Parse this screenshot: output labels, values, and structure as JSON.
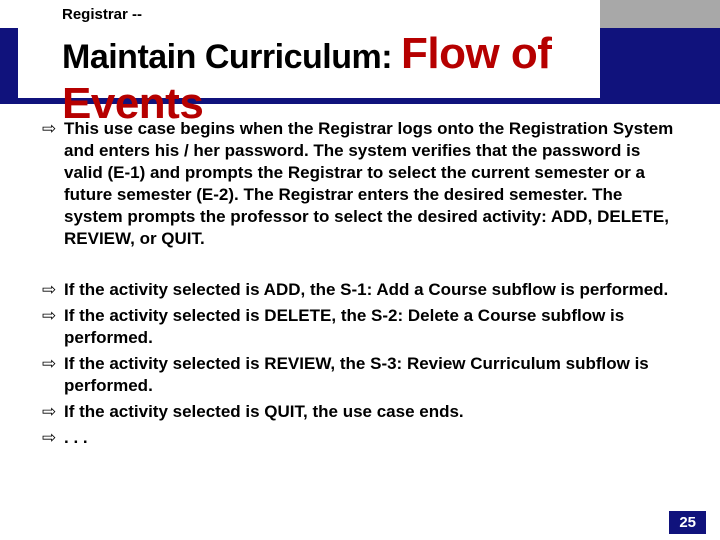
{
  "header": {
    "small_label": "Registrar --",
    "title_part1": "Maintain Curriculum: ",
    "title_part2": "Flow of Events"
  },
  "colors": {
    "blue_bar": "#10127c",
    "grey_box": "#a8a8a8",
    "title_emphasis": "#b60000",
    "page_number_bg": "#10127c",
    "page_number_fg": "#ffffff",
    "body_text": "#000000"
  },
  "bullets_group1": [
    "This use case begins when the Registrar logs onto the Registration System and enters his / her password.  The system verifies that the password is valid (E-1) and prompts the Registrar to select the current semester or a future semester (E-2).  The Registrar enters the desired semester.  The system prompts the professor to select the desired activity:  ADD, DELETE, REVIEW, or QUIT."
  ],
  "bullets_group2": [
    "If the activity selected is ADD, the S-1:  Add a Course subflow is performed.",
    "If the activity selected is DELETE, the S-2:  Delete a Course subflow is performed.",
    "If the activity selected is REVIEW, the S-3:  Review Curriculum subflow is performed.",
    "If the activity selected is QUIT, the use case ends.",
    ". . ."
  ],
  "bullet_marker": "⇨",
  "page_number": "25",
  "typography": {
    "small_label_fontsize": 15,
    "title_part1_fontsize": 34,
    "title_part2_fontsize": 44,
    "body_fontsize": 17,
    "body_lineheight": 1.3
  }
}
